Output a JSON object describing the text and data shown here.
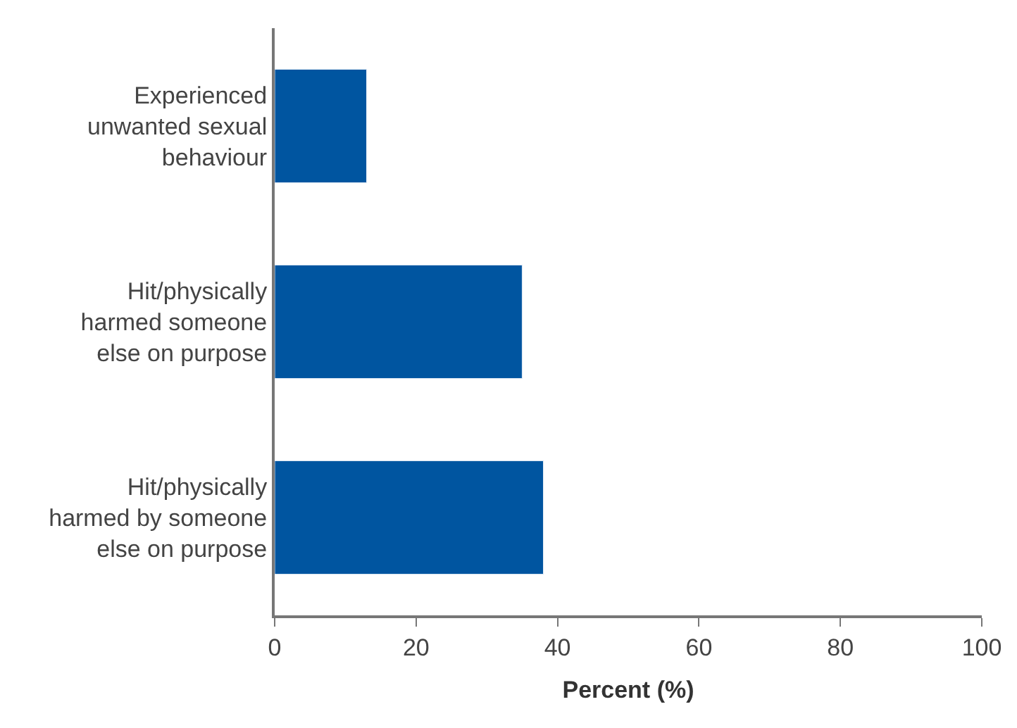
{
  "chart_data": {
    "type": "bar",
    "orientation": "horizontal",
    "xlabel": "Percent (%)",
    "categories": [
      "Experienced unwanted sexual behaviour",
      "Hit/physically harmed someone else on purpose",
      "Hit/physically harmed by someone else on purpose"
    ],
    "values": [
      13,
      35,
      38
    ],
    "color": "#0055a0",
    "xlim": [
      0,
      100
    ],
    "xticks": [
      0,
      20,
      40,
      60,
      80,
      100
    ]
  }
}
